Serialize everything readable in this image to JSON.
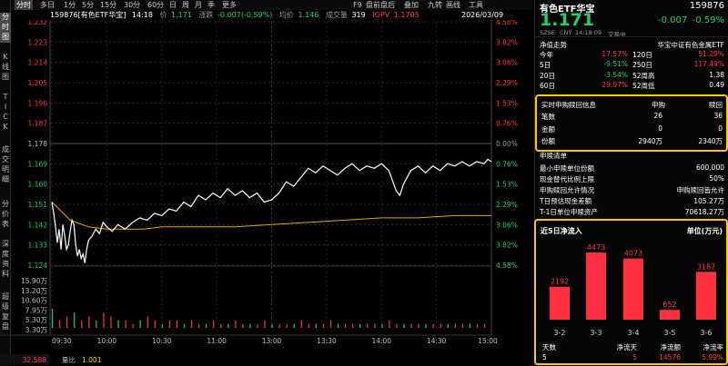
{
  "vtabs": [
    {
      "label": "分时图",
      "active": true
    },
    {
      "label": "K线图",
      "active": false
    },
    {
      "label": "TICK",
      "active": false
    },
    {
      "label": "成交明细",
      "active": false
    },
    {
      "label": "分价表",
      "active": false
    },
    {
      "label": "深度资料",
      "active": false
    },
    {
      "label": "超级复盘",
      "active": false
    }
  ],
  "toolbar": {
    "periods": [
      "分时",
      "多日",
      "1分",
      "5分",
      "15分",
      "30分",
      "60分",
      "日",
      "周",
      "月",
      "季",
      "更多"
    ],
    "active_period": "分时",
    "tools": [
      "F9",
      "盘前盘后",
      "叠加",
      "九转",
      "画线",
      "工具"
    ]
  },
  "info": {
    "code_name": "159876[有色ETF华宝]",
    "time": "14:18",
    "price_label": "价",
    "price": "1.171",
    "change_label": "涨跌",
    "change": "-0.007(-0.59%)",
    "avg_label": "均价",
    "avg": "1.146",
    "vol_label": "成交量",
    "vol": "319",
    "iopv_label": "IOPV",
    "iopv": "1.1705",
    "date": "2026/03/09"
  },
  "chart_data": {
    "type": "line",
    "price_ticks": [
      "1.232",
      "1.223",
      "1.214",
      "1.205",
      "1.196",
      "1.187",
      "1.178",
      "1.169",
      "1.160",
      "1.151",
      "1.142",
      "1.133",
      "1.124"
    ],
    "pct_ticks": [
      "4.58%",
      "3.82%",
      "3.06%",
      "2.29%",
      "1.53%",
      "0.76%",
      "0.00%",
      "0.76%",
      "1.53%",
      "2.29%",
      "3.06%",
      "3.82%",
      "4.58%"
    ],
    "pct_colors": [
      "red",
      "red",
      "red",
      "red",
      "red",
      "red",
      "grey",
      "green",
      "green",
      "green",
      "green",
      "green",
      "green"
    ],
    "vol_ticks": [
      "15.90万",
      "13.20万",
      "10.60万",
      "7.95万",
      "5.30万",
      "3.30万"
    ],
    "x_ticks": [
      "09:30",
      "10:00",
      "10:30",
      "11:00",
      "13:00",
      "13:30",
      "14:00",
      "14:30",
      "15:00"
    ],
    "ylim": [
      1.124,
      1.232
    ],
    "prev_close": 1.178,
    "price_series": [
      [
        0,
        1.152
      ],
      [
        1,
        1.147
      ],
      [
        2,
        1.141
      ],
      [
        3,
        1.134
      ],
      [
        4,
        1.14
      ],
      [
        5,
        1.131
      ],
      [
        6,
        1.142
      ],
      [
        7,
        1.137
      ],
      [
        8,
        1.131
      ],
      [
        9,
        1.133
      ],
      [
        10,
        1.139
      ],
      [
        11,
        1.144
      ],
      [
        12,
        1.142
      ],
      [
        13,
        1.133
      ],
      [
        14,
        1.128
      ],
      [
        15,
        1.131
      ],
      [
        16,
        1.127
      ],
      [
        17,
        1.129
      ],
      [
        18,
        1.125
      ],
      [
        19,
        1.131
      ],
      [
        20,
        1.135
      ],
      [
        22,
        1.137
      ],
      [
        24,
        1.14
      ],
      [
        26,
        1.138
      ],
      [
        28,
        1.143
      ],
      [
        30,
        1.141
      ],
      [
        33,
        1.139
      ],
      [
        36,
        1.142
      ],
      [
        40,
        1.14
      ],
      [
        44,
        1.143
      ],
      [
        48,
        1.145
      ],
      [
        52,
        1.144
      ],
      [
        56,
        1.147
      ],
      [
        60,
        1.146
      ],
      [
        64,
        1.149
      ],
      [
        68,
        1.148
      ],
      [
        72,
        1.152
      ],
      [
        76,
        1.15
      ],
      [
        80,
        1.155
      ],
      [
        84,
        1.153
      ],
      [
        88,
        1.156
      ],
      [
        92,
        1.154
      ],
      [
        96,
        1.158
      ],
      [
        100,
        1.155
      ],
      [
        104,
        1.157
      ],
      [
        108,
        1.154
      ],
      [
        112,
        1.156
      ],
      [
        116,
        1.152
      ],
      [
        120,
        1.153
      ],
      [
        124,
        1.156
      ],
      [
        128,
        1.161
      ],
      [
        132,
        1.159
      ],
      [
        136,
        1.163
      ],
      [
        140,
        1.167
      ],
      [
        144,
        1.165
      ],
      [
        148,
        1.168
      ],
      [
        152,
        1.166
      ],
      [
        156,
        1.164
      ],
      [
        160,
        1.167
      ],
      [
        164,
        1.169
      ],
      [
        168,
        1.166
      ],
      [
        172,
        1.168
      ],
      [
        176,
        1.167
      ],
      [
        180,
        1.169
      ],
      [
        184,
        1.166
      ],
      [
        188,
        1.157
      ],
      [
        190,
        1.155
      ],
      [
        192,
        1.16
      ],
      [
        196,
        1.166
      ],
      [
        200,
        1.168
      ],
      [
        204,
        1.165
      ],
      [
        208,
        1.168
      ],
      [
        212,
        1.166
      ],
      [
        216,
        1.169
      ],
      [
        220,
        1.168
      ],
      [
        224,
        1.17
      ],
      [
        228,
        1.168
      ],
      [
        232,
        1.17
      ],
      [
        236,
        1.169
      ],
      [
        238,
        1.171
      ],
      [
        240,
        1.17
      ]
    ],
    "avg_series": [
      [
        0,
        1.152
      ],
      [
        5,
        1.148
      ],
      [
        10,
        1.144
      ],
      [
        20,
        1.141
      ],
      [
        30,
        1.14
      ],
      [
        40,
        1.14
      ],
      [
        50,
        1.14
      ],
      [
        60,
        1.141
      ],
      [
        80,
        1.141
      ],
      [
        100,
        1.141
      ],
      [
        120,
        1.142
      ],
      [
        140,
        1.143
      ],
      [
        160,
        1.144
      ],
      [
        180,
        1.145
      ],
      [
        200,
        1.145
      ],
      [
        220,
        1.146
      ],
      [
        240,
        1.146
      ]
    ],
    "volumes": [
      5,
      2,
      3,
      4,
      2,
      3,
      2,
      4,
      3,
      2,
      2,
      1,
      2,
      3,
      2,
      1,
      2,
      2,
      1,
      2,
      1,
      1,
      2,
      1,
      1,
      2,
      1,
      1,
      1,
      2,
      1,
      1,
      1,
      1,
      2,
      1,
      1,
      1,
      2,
      1,
      1,
      1,
      1,
      1,
      1,
      1,
      2,
      1,
      1,
      1,
      1,
      1,
      1,
      1,
      1,
      1,
      1,
      1,
      1,
      1
    ],
    "ratio_label": "量比",
    "ratio_value": "1.001",
    "ratio_axis": "32.588"
  },
  "panel": {
    "title": "有色ETF华宝",
    "code": "159876",
    "price": "1.171",
    "change": "-0.007",
    "change_pct": "-0.59%",
    "sub": [
      "SZSE",
      "CNY",
      "14:18:09",
      "交易中"
    ],
    "trend_label": "净值走势",
    "index_name": "华宝中证有色金属ETF",
    "returns": [
      {
        "k1": "今年",
        "v1": "17.57%",
        "c1": "red",
        "k2": "120日",
        "v2": "51.29%",
        "c2": "red"
      },
      {
        "k1": "5日",
        "v1": "-9.51%",
        "c1": "green",
        "k2": "250日",
        "v2": "117.49%",
        "c2": "red"
      },
      {
        "k1": "20日",
        "v1": "-3.54%",
        "c1": "green",
        "k2": "52周高",
        "v2": "1.38",
        "c2": "white"
      },
      {
        "k1": "60日",
        "v1": "29.97%",
        "c1": "red",
        "k2": "52周低",
        "v2": "0.49",
        "c2": "white"
      }
    ],
    "redeem": {
      "title": "实时申购赎回信息",
      "col1": "申购",
      "col2": "赎回",
      "rows": [
        {
          "k": "笔数",
          "a": "26",
          "b": "36"
        },
        {
          "k": "金额",
          "a": "0",
          "b": "0"
        },
        {
          "k": "份额",
          "a": "2940万",
          "b": "2340万"
        }
      ]
    },
    "list_title": "申赎清单",
    "list": [
      {
        "k": "最小申赎单位份额",
        "v": "600,000"
      },
      {
        "k": "现金替代比例上限",
        "v": "50%"
      },
      {
        "k": "申购赎回允许情况",
        "v": "申购赎回皆允许"
      },
      {
        "k": "T日预估现金差额",
        "v": "105.27万"
      },
      {
        "k": "T-1日单位申赎资产",
        "v": "70618.27万"
      }
    ],
    "flow": {
      "title": "近5日净流入",
      "unit": "单位(万元)",
      "categories": [
        "3-2",
        "3-3",
        "3-4",
        "3-5",
        "3-6"
      ],
      "values": [
        2192,
        4473,
        4073,
        652,
        3187
      ],
      "ylim": [
        0,
        4473
      ]
    },
    "stats_headers": [
      "天数",
      "净流天",
      "净流额",
      "净流率"
    ],
    "stats_values": [
      "5",
      "5",
      "14576",
      "5.99%"
    ]
  },
  "colors": {
    "up": "#ff3b3b",
    "down": "#1fd16b",
    "price_line": "#ffffff",
    "avg_line": "#e6a400",
    "box": "#ffc800",
    "bar": "#ff3040"
  }
}
